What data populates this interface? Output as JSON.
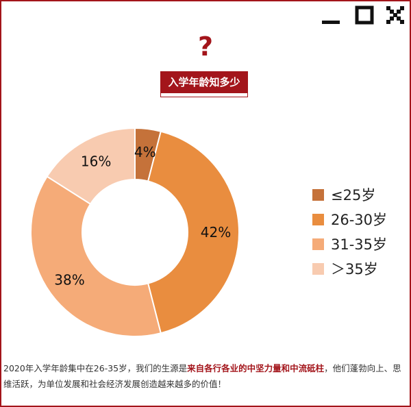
{
  "header": {
    "question_mark": "?",
    "title": "入学年龄知多少"
  },
  "window_controls": {
    "minimize": "minimize-icon",
    "maximize": "maximize-icon",
    "close": "close-icon"
  },
  "chart_data": {
    "type": "pie",
    "donut": true,
    "categories": [
      "≤25岁",
      "26-30岁",
      "31-35岁",
      "＞35岁"
    ],
    "values": [
      4,
      42,
      38,
      16
    ],
    "labels": [
      "4%",
      "42%",
      "38%",
      "16%"
    ],
    "colors": [
      "#c5723a",
      "#e98d3f",
      "#f5ab78",
      "#f8cbb0"
    ],
    "legend_position": "right",
    "title": ""
  },
  "footer": {
    "part1": "2020年入学年龄集中在26-35岁，我们的生源是",
    "highlight": "来自各行各业的中坚力量和中流砥柱",
    "part2": "，他们蓬勃向上、思维活跃，为单位发展和社会经济发展创造越来越多的价值！"
  }
}
